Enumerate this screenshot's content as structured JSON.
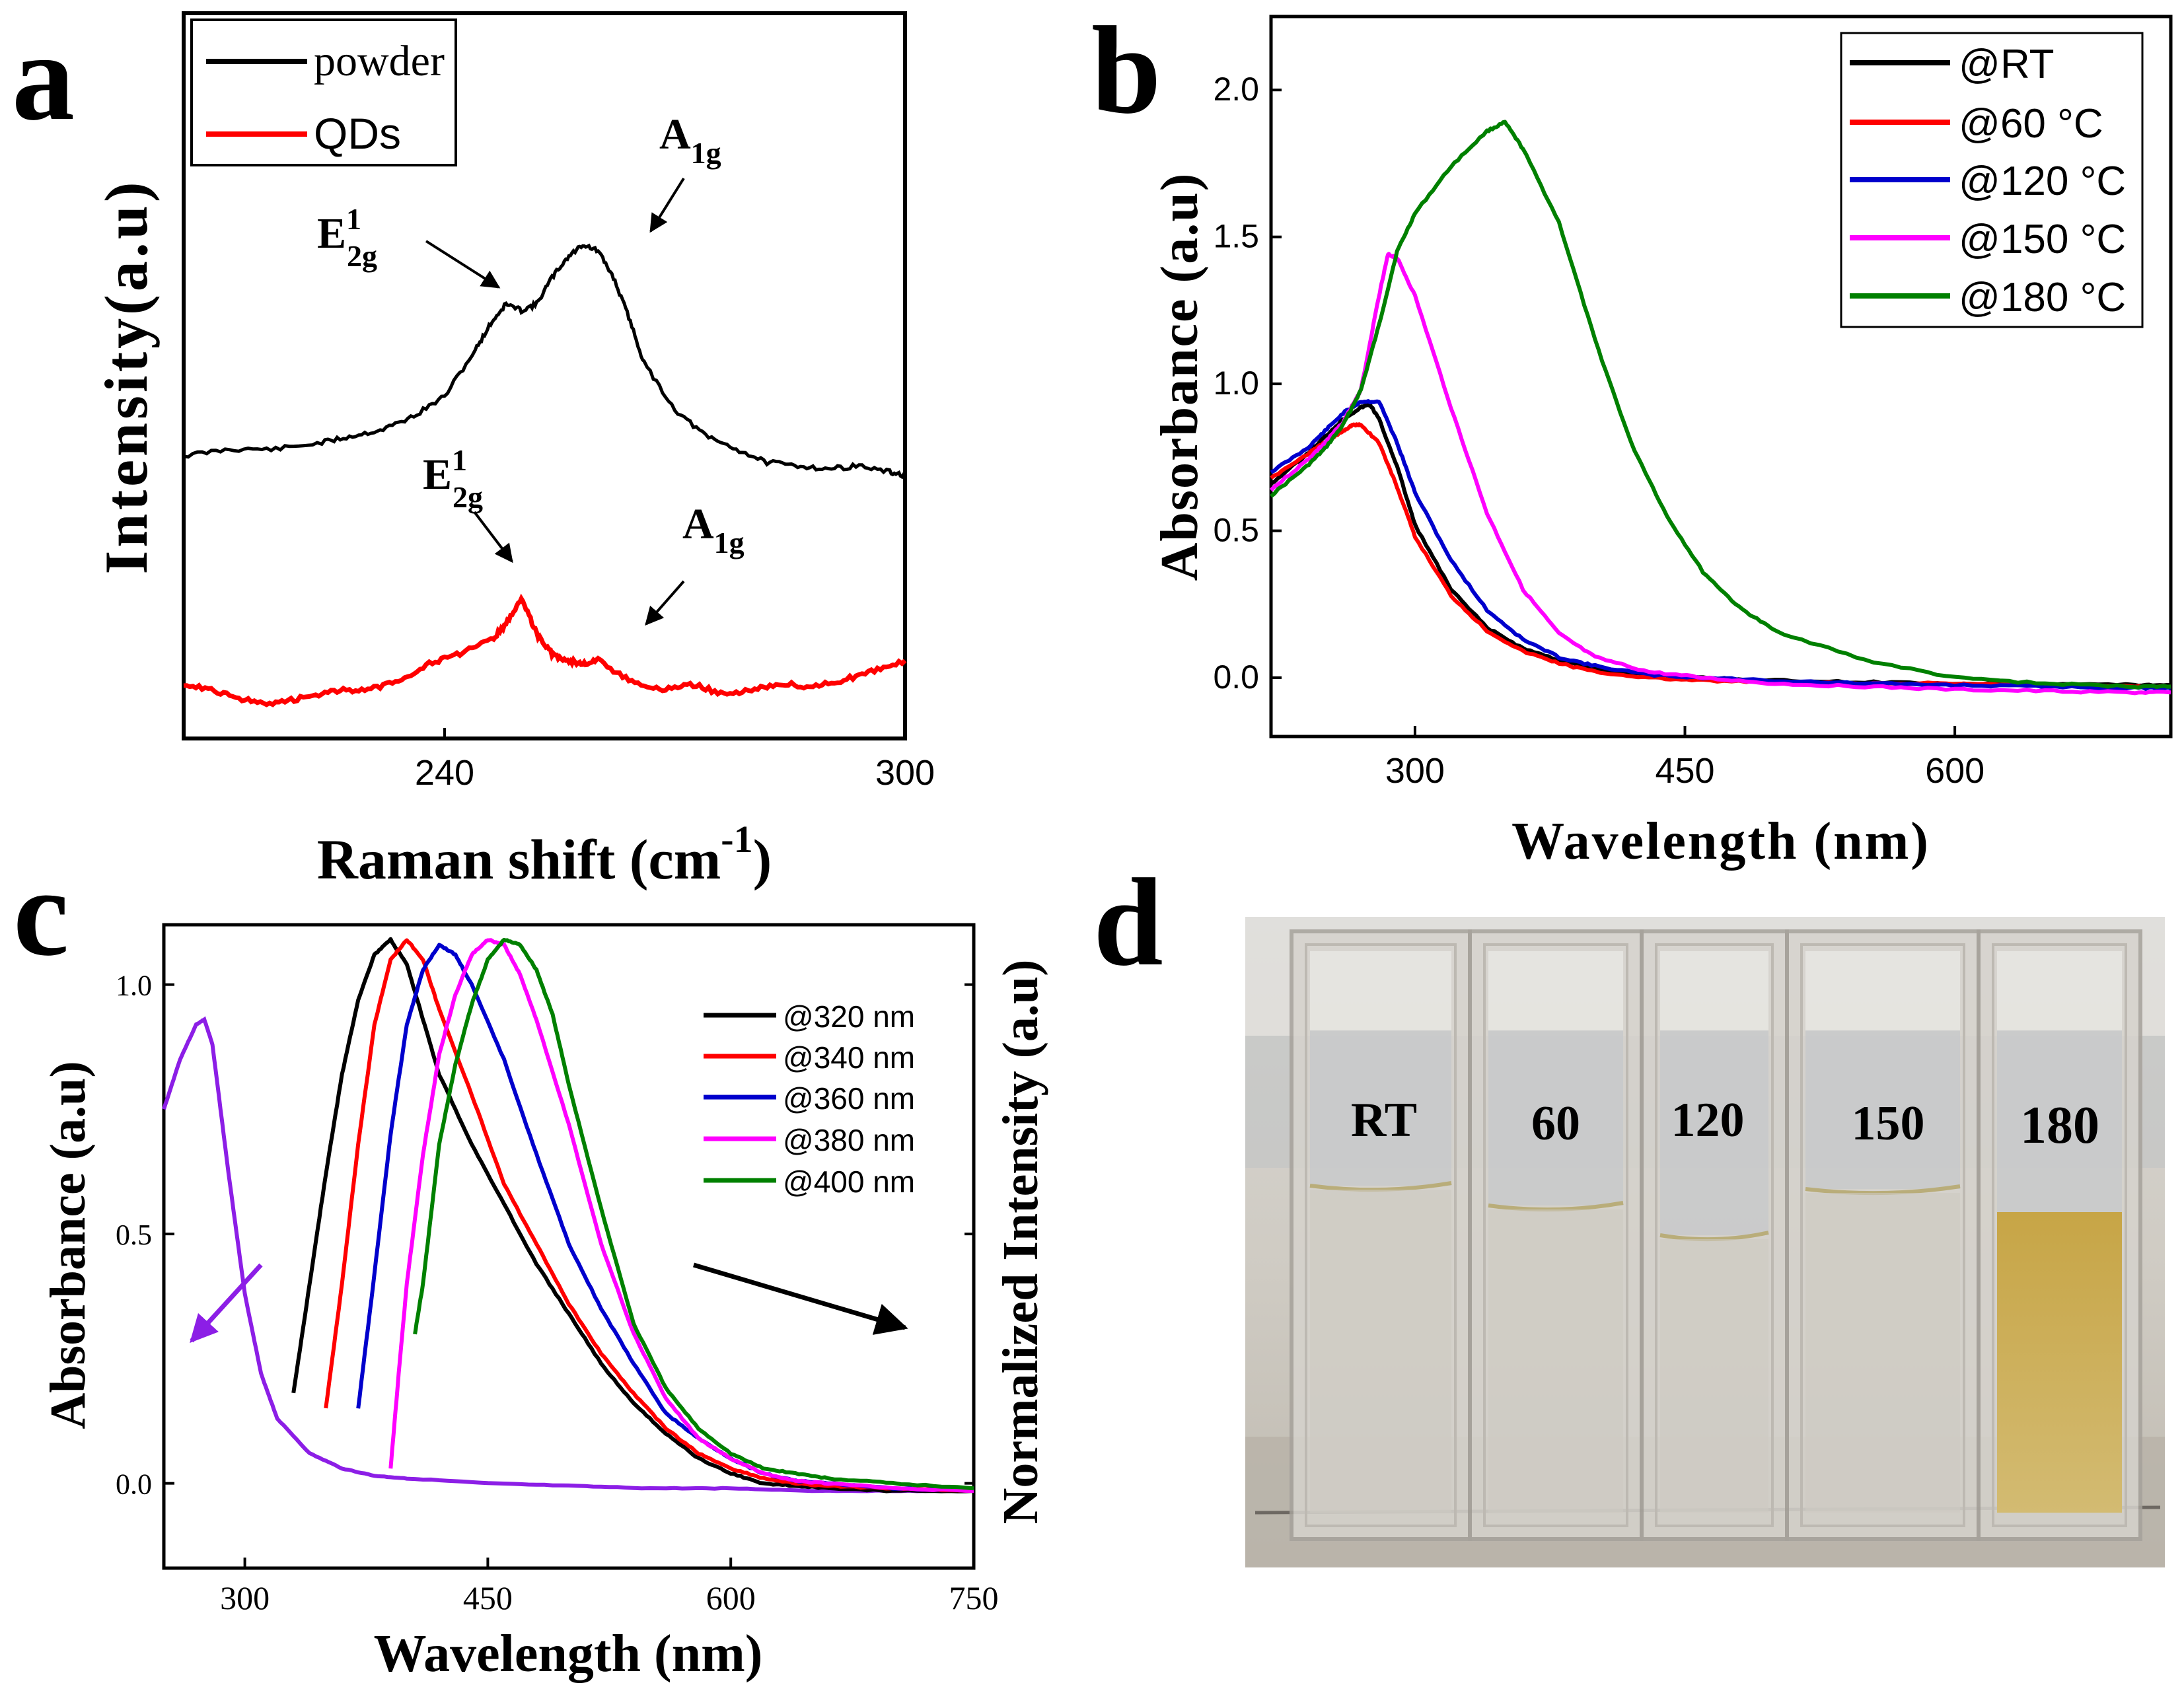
{
  "colors": {
    "black": "#000000",
    "red": "#ff0000",
    "blue": "#0000cc",
    "magenta": "#ff00ff",
    "green": "#008000",
    "violet": "#8c1ee6",
    "photo_liquid": "#c9a94e",
    "photo_bg": "#c9c5bd"
  },
  "chart_data": [
    {
      "panel": "a",
      "type": "line",
      "xlabel_main": "Raman shift (cm",
      "xlabel_sup": "-1",
      "xlabel_end": ")",
      "ylabel": "Intensity(a.u)",
      "xlim": [
        206,
        300
      ],
      "ylim": [
        0,
        10
      ],
      "xticks": [
        240,
        300
      ],
      "xtick_labels": [
        "240",
        "300"
      ],
      "series": [
        {
          "name": "powder",
          "color": "black",
          "x": [
            206,
            212,
            218,
            224,
            228,
            232,
            236,
            240,
            244,
            246,
            248,
            250,
            252,
            254,
            256,
            258,
            260,
            262,
            264,
            266,
            270,
            274,
            278,
            282,
            286,
            290,
            294,
            298,
            300
          ],
          "y": [
            3.9,
            4.0,
            4.0,
            4.1,
            4.2,
            4.3,
            4.5,
            4.8,
            5.5,
            5.9,
            6.2,
            6.1,
            6.2,
            6.6,
            6.9,
            7.1,
            7.0,
            6.6,
            6.0,
            5.3,
            4.6,
            4.2,
            4.0,
            3.8,
            3.75,
            3.7,
            3.75,
            3.65,
            3.6
          ]
        },
        {
          "name": "QDs",
          "color": "red",
          "x": [
            206,
            210,
            214,
            218,
            222,
            226,
            230,
            234,
            238,
            242,
            246,
            248,
            250,
            252,
            254,
            256,
            258,
            260,
            264,
            268,
            272,
            276,
            280,
            284,
            288,
            292,
            296,
            300
          ],
          "y": [
            0.45,
            0.35,
            0.2,
            0.15,
            0.25,
            0.35,
            0.35,
            0.5,
            0.75,
            0.9,
            1.1,
            1.35,
            1.75,
            1.2,
            0.9,
            0.8,
            0.75,
            0.8,
            0.5,
            0.35,
            0.45,
            0.3,
            0.35,
            0.45,
            0.4,
            0.5,
            0.65,
            0.8
          ]
        }
      ],
      "annotations": [
        {
          "base": "A",
          "sub": "1g",
          "sup": ""
        },
        {
          "base": "E",
          "sub": "2g",
          "sup": "1"
        },
        {
          "base": "E",
          "sub": "2g",
          "sup": "1"
        },
        {
          "base": "A",
          "sub": "1g",
          "sup": ""
        }
      ],
      "legend": "top-left"
    },
    {
      "panel": "b",
      "type": "line",
      "xlabel": "Wavelength (nm)",
      "ylabel": "Absorbance (a.u)",
      "xlim": [
        220,
        720
      ],
      "ylim": [
        -0.2,
        2.25
      ],
      "xticks": [
        300,
        450,
        600
      ],
      "xtick_labels": [
        "300",
        "450",
        "600"
      ],
      "yticks": [
        0.0,
        0.5,
        1.0,
        1.5,
        2.0
      ],
      "ytick_labels": [
        "0.0",
        "0.5",
        "1.0",
        "1.5",
        "2.0"
      ],
      "series": [
        {
          "name": "@RT",
          "color": "black",
          "x": [
            220,
            240,
            250,
            260,
            270,
            275,
            280,
            290,
            300,
            320,
            340,
            360,
            380,
            400,
            430,
            460,
            500,
            550,
            600,
            650,
            700,
            720
          ],
          "y": [
            0.66,
            0.76,
            0.82,
            0.88,
            0.92,
            0.93,
            0.88,
            0.72,
            0.52,
            0.3,
            0.17,
            0.1,
            0.06,
            0.03,
            0.01,
            0.0,
            -0.01,
            -0.015,
            -0.02,
            -0.02,
            -0.025,
            -0.025
          ]
        },
        {
          "name": "@60 °C",
          "color": "red",
          "x": [
            220,
            240,
            250,
            260,
            265,
            270,
            280,
            290,
            300,
            320,
            340,
            360,
            380,
            400,
            430,
            460,
            500,
            550,
            600,
            650,
            700,
            720
          ],
          "y": [
            0.68,
            0.76,
            0.8,
            0.84,
            0.86,
            0.86,
            0.8,
            0.65,
            0.48,
            0.28,
            0.16,
            0.09,
            0.05,
            0.02,
            0.0,
            -0.01,
            -0.015,
            -0.02,
            -0.02,
            -0.025,
            -0.03,
            -0.03
          ]
        },
        {
          "name": "@120 °C",
          "color": "blue",
          "x": [
            220,
            240,
            250,
            260,
            270,
            280,
            290,
            300,
            320,
            340,
            360,
            380,
            400,
            430,
            460,
            500,
            550,
            600,
            650,
            700,
            720
          ],
          "y": [
            0.7,
            0.78,
            0.84,
            0.9,
            0.94,
            0.94,
            0.8,
            0.63,
            0.4,
            0.23,
            0.13,
            0.07,
            0.04,
            0.01,
            0.0,
            -0.01,
            -0.02,
            -0.025,
            -0.03,
            -0.035,
            -0.035
          ]
        },
        {
          "name": "@150 °C",
          "color": "magenta",
          "x": [
            220,
            240,
            250,
            260,
            270,
            280,
            285,
            290,
            300,
            320,
            340,
            360,
            380,
            400,
            430,
            460,
            500,
            550,
            600,
            650,
            700,
            720
          ],
          "y": [
            0.64,
            0.74,
            0.8,
            0.87,
            0.98,
            1.3,
            1.44,
            1.43,
            1.3,
            0.92,
            0.56,
            0.3,
            0.15,
            0.07,
            0.02,
            0.0,
            -0.02,
            -0.03,
            -0.04,
            -0.045,
            -0.05,
            -0.05
          ]
        },
        {
          "name": "@180 °C",
          "color": "green",
          "x": [
            220,
            240,
            250,
            260,
            270,
            280,
            290,
            300,
            320,
            340,
            350,
            360,
            380,
            400,
            420,
            440,
            460,
            480,
            500,
            550,
            600,
            650,
            700,
            720
          ],
          "y": [
            0.62,
            0.72,
            0.78,
            0.86,
            0.98,
            1.2,
            1.45,
            1.58,
            1.74,
            1.86,
            1.89,
            1.8,
            1.55,
            1.15,
            0.8,
            0.55,
            0.36,
            0.24,
            0.16,
            0.06,
            0.0,
            -0.02,
            -0.03,
            -0.03
          ]
        }
      ],
      "legend": "top-right"
    },
    {
      "panel": "c",
      "type": "line",
      "xlabel": "Wavelength (nm)",
      "ylabel": "Absorbance (a.u)",
      "ylabel_right": "Normalized Intensity (a.u)",
      "xlim": [
        250,
        750
      ],
      "ylim": [
        -0.17,
        1.12
      ],
      "xticks": [
        300,
        450,
        600,
        750
      ],
      "xtick_labels": [
        "300",
        "450",
        "600",
        "750"
      ],
      "yticks": [
        0.0,
        0.5,
        1.0
      ],
      "ytick_labels": [
        "0.0",
        "0.5",
        "1.0"
      ],
      "absorbance_series": {
        "name": "absorbance",
        "color": "violet",
        "x": [
          250,
          260,
          270,
          275,
          280,
          290,
          300,
          310,
          320,
          340,
          360,
          380,
          400,
          450,
          500,
          550,
          600,
          650,
          700,
          750
        ],
        "y": [
          0.75,
          0.85,
          0.92,
          0.93,
          0.88,
          0.62,
          0.38,
          0.22,
          0.13,
          0.06,
          0.03,
          0.015,
          0.01,
          0.0,
          -0.005,
          -0.01,
          -0.01,
          -0.015,
          -0.015,
          -0.015
        ]
      },
      "series": [
        {
          "name": "@320 nm",
          "color": "black",
          "x": [
            330,
            340,
            350,
            360,
            370,
            380,
            390,
            400,
            410,
            420,
            440,
            460,
            480,
            500,
            520,
            540,
            560,
            580,
            600,
            620,
            640,
            660,
            700,
            750
          ],
          "y": [
            0.18,
            0.4,
            0.62,
            0.82,
            0.97,
            1.06,
            1.09,
            1.04,
            0.93,
            0.82,
            0.68,
            0.56,
            0.44,
            0.34,
            0.24,
            0.16,
            0.1,
            0.05,
            0.02,
            0.0,
            -0.005,
            -0.01,
            -0.015,
            -0.015
          ]
        },
        {
          "name": "@340 nm",
          "color": "red",
          "x": [
            350,
            360,
            370,
            380,
            390,
            400,
            410,
            420,
            440,
            460,
            480,
            500,
            520,
            540,
            560,
            580,
            600,
            620,
            640,
            660,
            700,
            750
          ],
          "y": [
            0.15,
            0.4,
            0.68,
            0.92,
            1.05,
            1.09,
            1.05,
            0.95,
            0.78,
            0.6,
            0.48,
            0.36,
            0.26,
            0.18,
            0.11,
            0.06,
            0.03,
            0.01,
            0.0,
            -0.005,
            -0.01,
            -0.015
          ]
        },
        {
          "name": "@360 nm",
          "color": "blue",
          "x": [
            370,
            380,
            390,
            400,
            410,
            420,
            430,
            440,
            460,
            480,
            500,
            520,
            540,
            560,
            580,
            600,
            620,
            640,
            660,
            700,
            750
          ],
          "y": [
            0.15,
            0.42,
            0.7,
            0.92,
            1.03,
            1.08,
            1.06,
            1.0,
            0.85,
            0.66,
            0.48,
            0.35,
            0.24,
            0.14,
            0.09,
            0.05,
            0.02,
            0.005,
            0.0,
            -0.01,
            -0.015
          ]
        },
        {
          "name": "@380 nm",
          "color": "magenta",
          "x": [
            390,
            395,
            400,
            410,
            420,
            430,
            440,
            450,
            460,
            470,
            480,
            500,
            520,
            540,
            560,
            580,
            600,
            620,
            640,
            660,
            700,
            750
          ],
          "y": [
            0.03,
            0.22,
            0.4,
            0.66,
            0.86,
            0.98,
            1.06,
            1.09,
            1.08,
            1.02,
            0.93,
            0.72,
            0.48,
            0.3,
            0.17,
            0.09,
            0.05,
            0.02,
            0.005,
            0.0,
            -0.01,
            -0.015
          ]
        },
        {
          "name": "@400 nm",
          "color": "green",
          "x": [
            405,
            410,
            420,
            430,
            440,
            450,
            460,
            470,
            480,
            490,
            500,
            520,
            540,
            560,
            580,
            600,
            620,
            640,
            660,
            700,
            750
          ],
          "y": [
            0.3,
            0.4,
            0.68,
            0.84,
            0.96,
            1.05,
            1.09,
            1.08,
            1.03,
            0.94,
            0.8,
            0.55,
            0.32,
            0.19,
            0.11,
            0.06,
            0.03,
            0.02,
            0.01,
            0.0,
            -0.01
          ]
        }
      ],
      "legend": "top-right"
    },
    {
      "panel": "d",
      "type": "photo",
      "labels": [
        "RT",
        "60",
        "120",
        "150",
        "180"
      ]
    }
  ]
}
